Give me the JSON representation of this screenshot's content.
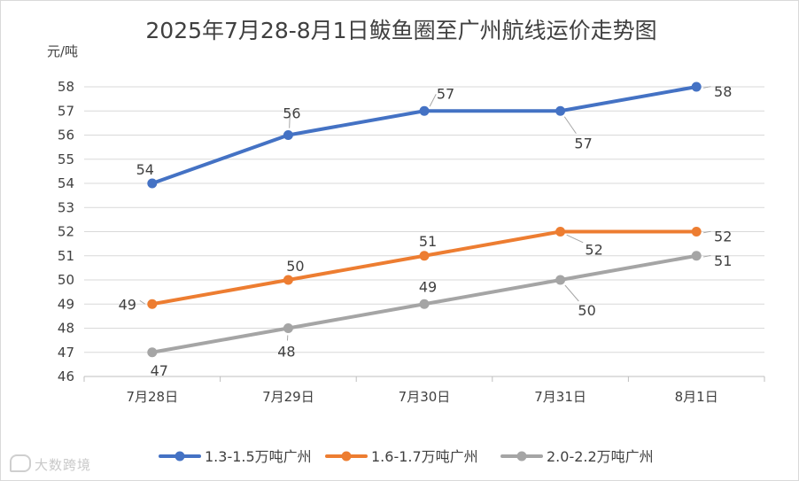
{
  "chart_data": {
    "type": "line",
    "title": "2025年7月28-8月1日鲅鱼圈至广州航线运价走势图",
    "ylabel": "元/吨",
    "xlabel": "",
    "ylim": [
      46,
      58
    ],
    "yticks": [
      46,
      47,
      48,
      49,
      50,
      51,
      52,
      53,
      54,
      55,
      56,
      57,
      58
    ],
    "categories": [
      "7月28日",
      "7月29日",
      "7月30日",
      "7月31日",
      "8月1日"
    ],
    "grid": true,
    "legend_position": "bottom",
    "series": [
      {
        "name": "1.3-1.5万吨广州",
        "color": "#4472c4",
        "values": [
          54,
          56,
          57,
          57,
          58
        ]
      },
      {
        "name": "1.6-1.7万吨广州",
        "color": "#ed7d31",
        "values": [
          49,
          50,
          51,
          52,
          52
        ]
      },
      {
        "name": "2.0-2.2万吨广州",
        "color": "#a5a5a5",
        "values": [
          47,
          48,
          49,
          50,
          51
        ]
      }
    ]
  },
  "watermark": "大数跨境"
}
